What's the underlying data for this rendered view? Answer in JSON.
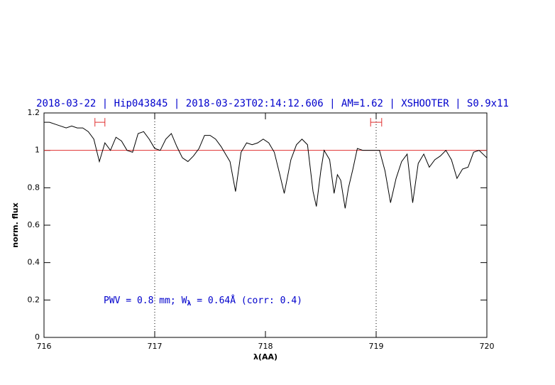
{
  "chart_data": {
    "type": "line",
    "title": "2018-03-22 | Hip043845 | 2018-03-23T02:14:12.606 | AM=1.62 | XSHOOTER | S0.9x11",
    "xlabel": "λ(AA)",
    "ylabel": "norm. flux",
    "annotation": [
      "PWV = 0.8 mm; W",
      "λ",
      " = 0.64Å (corr: 0.4)"
    ],
    "xlim": [
      716,
      720
    ],
    "ylim": [
      0,
      1.2
    ],
    "xticks": [
      716,
      717,
      718,
      719,
      720
    ],
    "yticks": [
      0,
      0.2,
      0.4,
      0.6,
      0.8,
      1,
      1.2
    ],
    "hline": {
      "value": 1,
      "color": "#e03030"
    },
    "vlines": [
      717,
      719
    ],
    "intervals": [
      {
        "x": [
          716.46,
          716.55
        ],
        "y": 1.15,
        "color": "#e03030"
      },
      {
        "x": [
          718.95,
          719.05
        ],
        "y": 1.15,
        "color": "#e03030"
      }
    ],
    "series": [
      {
        "name": "flux",
        "color": "#000000",
        "x": [
          716,
          716.05,
          716.1,
          716.15,
          716.2,
          716.25,
          716.3,
          716.35,
          716.4,
          716.45,
          716.5,
          716.55,
          716.6,
          716.65,
          716.7,
          716.75,
          716.8,
          716.85,
          716.9,
          716.95,
          717,
          717.05,
          717.1,
          717.15,
          717.2,
          717.25,
          717.3,
          717.35,
          717.4,
          717.45,
          717.5,
          717.55,
          717.6,
          717.65,
          717.68,
          717.73,
          717.78,
          717.83,
          717.88,
          717.93,
          717.98,
          718.03,
          718.08,
          718.13,
          718.17,
          718.23,
          718.28,
          718.33,
          718.38,
          718.43,
          718.46,
          718.5,
          718.53,
          718.58,
          718.62,
          718.65,
          718.68,
          718.72,
          718.75,
          718.79,
          718.83,
          718.88,
          718.93,
          718.98,
          719.03,
          719.08,
          719.13,
          719.18,
          719.23,
          719.28,
          719.33,
          719.38,
          719.43,
          719.48,
          719.53,
          719.58,
          719.63,
          719.68,
          719.73,
          719.78,
          719.83,
          719.88,
          719.93,
          720
        ],
        "values": [
          1.15,
          1.15,
          1.14,
          1.13,
          1.12,
          1.13,
          1.12,
          1.12,
          1.1,
          1.06,
          0.94,
          1.04,
          1.0,
          1.07,
          1.05,
          1.0,
          0.99,
          1.09,
          1.1,
          1.06,
          1.01,
          1.0,
          1.06,
          1.09,
          1.02,
          0.96,
          0.94,
          0.97,
          1.01,
          1.08,
          1.08,
          1.06,
          1.02,
          0.97,
          0.94,
          0.78,
          0.99,
          1.04,
          1.03,
          1.04,
          1.06,
          1.04,
          0.99,
          0.87,
          0.77,
          0.95,
          1.03,
          1.06,
          1.03,
          0.78,
          0.7,
          0.89,
          1.0,
          0.95,
          0.77,
          0.87,
          0.84,
          0.69,
          0.8,
          0.9,
          1.01,
          1.0,
          1.0,
          1.0,
          1.0,
          0.89,
          0.72,
          0.85,
          0.94,
          0.98,
          0.72,
          0.93,
          0.98,
          0.91,
          0.95,
          0.97,
          1.0,
          0.95,
          0.85,
          0.9,
          0.91,
          0.99,
          1.0,
          0.96
        ]
      }
    ]
  }
}
